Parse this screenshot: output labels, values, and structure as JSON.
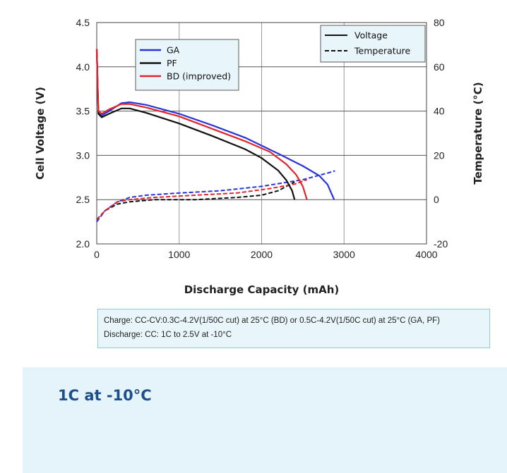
{
  "chart_data": {
    "type": "line",
    "xlabel": "Discharge Capacity (mAh)",
    "ylabel_left": "Cell Voltage (V)",
    "ylabel_right": "Temperature (°C)",
    "xlim": [
      0,
      4000
    ],
    "ylim_left": [
      2.0,
      4.5
    ],
    "ylim_right": [
      -20,
      80
    ],
    "x_ticks": [
      "0",
      "1000",
      "2000",
      "3000",
      "4000"
    ],
    "y_left_ticks": [
      "2.0",
      "2.5",
      "3.0",
      "3.5",
      "4.0",
      "4.5"
    ],
    "y_right_ticks": [
      "-20",
      "0",
      "20",
      "40",
      "60",
      "80"
    ],
    "grid": true,
    "colors": {
      "GA": "#2a34d8",
      "PF": "#111111",
      "BD": "#e0252b"
    },
    "legend_series": {
      "placement": "top-left",
      "items": [
        {
          "label": "GA",
          "color": "#2a34d8"
        },
        {
          "label": "PF",
          "color": "#111111"
        },
        {
          "label": "BD (improved)",
          "color": "#e0252b"
        }
      ]
    },
    "legend_style": {
      "placement": "top-right",
      "items": [
        {
          "label": "Voltage",
          "dash": "solid"
        },
        {
          "label": "Temperature",
          "dash": "dashed"
        }
      ]
    },
    "voltage_series": [
      {
        "id": "GA",
        "color": "#2a34d8",
        "points": [
          [
            0,
            4.2
          ],
          [
            20,
            3.5
          ],
          [
            60,
            3.45
          ],
          [
            150,
            3.5
          ],
          [
            300,
            3.59
          ],
          [
            400,
            3.6
          ],
          [
            600,
            3.57
          ],
          [
            1000,
            3.47
          ],
          [
            1400,
            3.34
          ],
          [
            1800,
            3.2
          ],
          [
            2200,
            3.02
          ],
          [
            2500,
            2.88
          ],
          [
            2700,
            2.77
          ],
          [
            2800,
            2.67
          ],
          [
            2880,
            2.5
          ]
        ]
      },
      {
        "id": "PF",
        "color": "#111111",
        "points": [
          [
            0,
            4.2
          ],
          [
            20,
            3.47
          ],
          [
            60,
            3.43
          ],
          [
            150,
            3.47
          ],
          [
            300,
            3.53
          ],
          [
            400,
            3.53
          ],
          [
            600,
            3.48
          ],
          [
            1000,
            3.36
          ],
          [
            1400,
            3.22
          ],
          [
            1800,
            3.07
          ],
          [
            2000,
            2.97
          ],
          [
            2200,
            2.83
          ],
          [
            2300,
            2.72
          ],
          [
            2370,
            2.6
          ],
          [
            2400,
            2.5
          ]
        ]
      },
      {
        "id": "BD",
        "color": "#e0252b",
        "points": [
          [
            0,
            4.2
          ],
          [
            20,
            3.5
          ],
          [
            60,
            3.47
          ],
          [
            150,
            3.52
          ],
          [
            300,
            3.58
          ],
          [
            400,
            3.58
          ],
          [
            600,
            3.54
          ],
          [
            1000,
            3.44
          ],
          [
            1400,
            3.3
          ],
          [
            1800,
            3.16
          ],
          [
            2100,
            3.04
          ],
          [
            2300,
            2.9
          ],
          [
            2420,
            2.78
          ],
          [
            2500,
            2.65
          ],
          [
            2550,
            2.5
          ]
        ]
      }
    ],
    "temperature_series": [
      {
        "id": "GA",
        "color": "#2a34d8",
        "points": [
          [
            0,
            -10
          ],
          [
            100,
            -5
          ],
          [
            250,
            -1
          ],
          [
            400,
            1
          ],
          [
            600,
            2
          ],
          [
            1000,
            3
          ],
          [
            1500,
            4
          ],
          [
            2000,
            6
          ],
          [
            2500,
            9
          ],
          [
            2800,
            12
          ],
          [
            2890,
            13
          ]
        ]
      },
      {
        "id": "PF",
        "color": "#111111",
        "points": [
          [
            0,
            -9
          ],
          [
            100,
            -5
          ],
          [
            250,
            -2
          ],
          [
            400,
            -1
          ],
          [
            700,
            0
          ],
          [
            1200,
            0
          ],
          [
            1700,
            1
          ],
          [
            2000,
            2
          ],
          [
            2200,
            4
          ],
          [
            2300,
            6
          ],
          [
            2400,
            8
          ]
        ]
      },
      {
        "id": "BD",
        "color": "#e0252b",
        "points": [
          [
            0,
            -9
          ],
          [
            100,
            -5
          ],
          [
            250,
            -1
          ],
          [
            400,
            0
          ],
          [
            700,
            1
          ],
          [
            1200,
            2
          ],
          [
            1700,
            3
          ],
          [
            2100,
            5
          ],
          [
            2400,
            7
          ],
          [
            2550,
            9
          ]
        ]
      }
    ]
  },
  "note": {
    "line1": "Charge: CC-CV:0.3C-4.2V(1/50C cut) at 25°C (BD) or 0.5C-4.2V(1/50C cut) at 25°C (GA, PF)",
    "line2": "Discharge: CC: 1C to 2.5V at -10°C"
  },
  "caption": "1C at -10°C"
}
